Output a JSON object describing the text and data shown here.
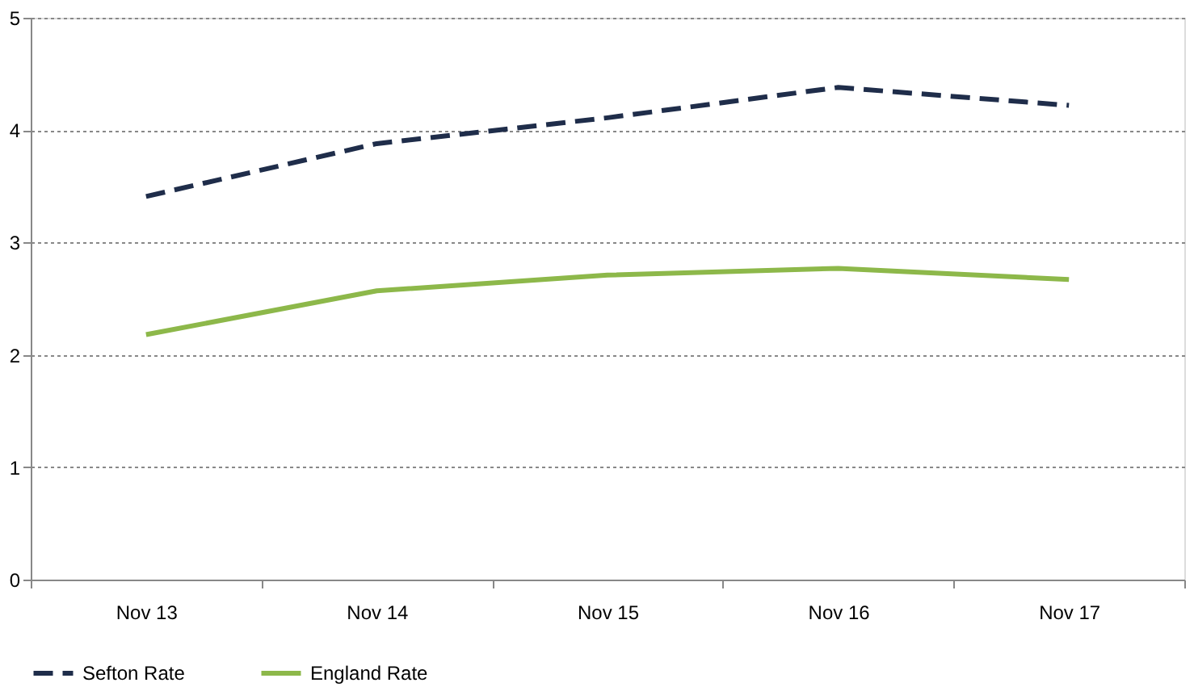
{
  "chart_data": {
    "type": "line",
    "categories": [
      "Nov 13",
      "Nov 14",
      "Nov 15",
      "Nov 16",
      "Nov 17"
    ],
    "series": [
      {
        "name": "Sefton Rate",
        "color": "#1f2d4a",
        "line_style": "dashed",
        "values": [
          3.41,
          3.88,
          4.11,
          4.38,
          4.22
        ]
      },
      {
        "name": "England Rate",
        "color": "#8db84a",
        "line_style": "solid",
        "values": [
          2.18,
          2.57,
          2.71,
          2.77,
          2.67
        ]
      }
    ],
    "ylim": [
      0,
      5
    ],
    "yticks": [
      0,
      1,
      2,
      3,
      4,
      5
    ],
    "grid": "y",
    "legend": "bottom",
    "marker": "none"
  }
}
